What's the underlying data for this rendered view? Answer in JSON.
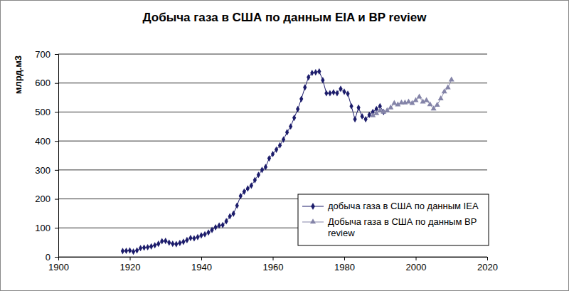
{
  "chart_data": {
    "type": "line",
    "title": "Добыча газа в США по данным EIA и BP review",
    "y_label": "млрд.м3",
    "xlim": [
      1900,
      2020
    ],
    "xticks": [
      1900,
      1920,
      1940,
      1960,
      1980,
      2000,
      2020
    ],
    "ylim": [
      0,
      700
    ],
    "yticks": [
      0,
      100,
      200,
      300,
      400,
      500,
      600,
      700
    ],
    "grid": true,
    "legend": "lower-right",
    "series": [
      {
        "name": "добыча газа в США по данным IEA",
        "color": "#1c1c6b",
        "marker": "diamond",
        "line_style": "solid",
        "x": [
          1918,
          1919,
          1920,
          1921,
          1922,
          1923,
          1924,
          1925,
          1926,
          1927,
          1928,
          1929,
          1930,
          1931,
          1932,
          1933,
          1934,
          1935,
          1936,
          1937,
          1938,
          1939,
          1940,
          1941,
          1942,
          1943,
          1944,
          1945,
          1946,
          1947,
          1948,
          1949,
          1950,
          1951,
          1952,
          1953,
          1954,
          1955,
          1956,
          1957,
          1958,
          1959,
          1960,
          1961,
          1962,
          1963,
          1964,
          1965,
          1966,
          1967,
          1968,
          1969,
          1970,
          1971,
          1972,
          1973,
          1974,
          1975,
          1976,
          1977,
          1978,
          1979,
          1980,
          1981,
          1982,
          1983,
          1984,
          1985,
          1986,
          1987,
          1988,
          1989,
          1990,
          1991
        ],
        "values": [
          20,
          21,
          22,
          18,
          22,
          30,
          32,
          33,
          36,
          40,
          45,
          54,
          55,
          49,
          45,
          44,
          48,
          52,
          58,
          65,
          64,
          68,
          74,
          78,
          84,
          93,
          102,
          108,
          110,
          123,
          140,
          149,
          177,
          210,
          225,
          236,
          246,
          265,
          283,
          300,
          310,
          340,
          355,
          370,
          385,
          405,
          430,
          450,
          480,
          510,
          545,
          585,
          620,
          635,
          637,
          640,
          610,
          565,
          565,
          568,
          565,
          580,
          570,
          563,
          520,
          475,
          515,
          485,
          475,
          490,
          500,
          510,
          520,
          500
        ]
      },
      {
        "name": "Добыча газа в США по данным BP review",
        "color": "#8484a8",
        "marker": "triangle",
        "line_style": "solid",
        "x": [
          1988,
          1989,
          1990,
          1991,
          1992,
          1993,
          1994,
          1995,
          1996,
          1997,
          1998,
          1999,
          2000,
          2001,
          2002,
          2003,
          2004,
          2005,
          2006,
          2007,
          2008,
          2009,
          2010
        ],
        "values": [
          488,
          495,
          505,
          500,
          505,
          515,
          530,
          525,
          532,
          532,
          535,
          530,
          540,
          552,
          535,
          540,
          526,
          511,
          524,
          546,
          570,
          584,
          611
        ]
      }
    ]
  }
}
